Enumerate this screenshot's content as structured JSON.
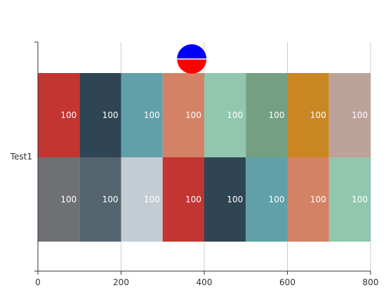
{
  "chart_data": {
    "type": "bar",
    "orientation": "horizontal",
    "stacked": true,
    "categories": [
      "Test1"
    ],
    "xlim": [
      0,
      800
    ],
    "x_ticks": [
      "0",
      "200",
      "400",
      "600",
      "800"
    ],
    "grid": "vertical",
    "legend": "none",
    "rows": [
      {
        "segments": [
          {
            "value": 100,
            "color": "#c23531"
          },
          {
            "value": 100,
            "color": "#2f4554"
          },
          {
            "value": 100,
            "color": "#61a0a8"
          },
          {
            "value": 100,
            "color": "#d48265"
          },
          {
            "value": 100,
            "color": "#91c7ae"
          },
          {
            "value": 100,
            "color": "#749f83"
          },
          {
            "value": 100,
            "color": "#ca8622"
          },
          {
            "value": 100,
            "color": "#bda29a"
          }
        ]
      },
      {
        "segments": [
          {
            "value": 100,
            "color": "#6e7074"
          },
          {
            "value": 100,
            "color": "#546570"
          },
          {
            "value": 100,
            "color": "#c4ccd3"
          },
          {
            "value": 100,
            "color": "#c23531"
          },
          {
            "value": 100,
            "color": "#2f4554"
          },
          {
            "value": 100,
            "color": "#61a0a8"
          },
          {
            "value": 100,
            "color": "#d48265"
          },
          {
            "value": 100,
            "color": "#91c7ae"
          }
        ]
      }
    ],
    "marker": {
      "shape": "circle",
      "x": 370,
      "top_color": "#0000ff",
      "bottom_color": "#ff0000"
    }
  }
}
